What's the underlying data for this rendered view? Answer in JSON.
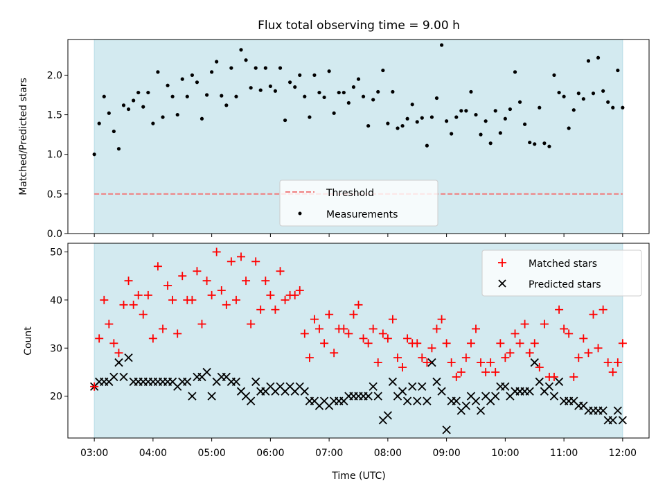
{
  "title": "Flux total observing time = 9.00 h",
  "colors": {
    "shade": "#d3eaf0",
    "shade_edge": "#b9dde6",
    "threshold": "#f08080",
    "matched": "#ff0000",
    "predicted": "#000000",
    "measurement": "#000000"
  },
  "chart_data": [
    {
      "type": "scatter",
      "ylabel": "Matched/Predicted stars",
      "xlabel": "",
      "xlim": [
        2.55,
        12.45
      ],
      "ylim": [
        0.0,
        2.45
      ],
      "yticks": [
        0.0,
        0.5,
        1.0,
        1.5,
        2.0
      ],
      "ytick_labels": [
        "0.0",
        "0.5",
        "1.0",
        "1.5",
        "2.0"
      ],
      "shaded_span": [
        3.0,
        12.0
      ],
      "grid": false,
      "legend_position": "lower-center",
      "threshold": {
        "name": "Threshold",
        "y": 0.5,
        "style": "dashed"
      },
      "series": [
        {
          "name": "Measurements",
          "marker": "dot",
          "x": [
            3.0,
            3.083,
            3.167,
            3.25,
            3.333,
            3.417,
            3.5,
            3.583,
            3.667,
            3.75,
            3.833,
            3.917,
            4.0,
            4.083,
            4.167,
            4.25,
            4.333,
            4.417,
            4.5,
            4.583,
            4.667,
            4.75,
            4.833,
            4.917,
            5.0,
            5.083,
            5.167,
            5.25,
            5.333,
            5.417,
            5.5,
            5.583,
            5.667,
            5.75,
            5.833,
            5.917,
            6.0,
            6.083,
            6.167,
            6.25,
            6.333,
            6.417,
            6.5,
            6.583,
            6.667,
            6.75,
            6.833,
            6.917,
            7.0,
            7.083,
            7.167,
            7.25,
            7.333,
            7.417,
            7.5,
            7.583,
            7.667,
            7.75,
            7.833,
            7.917,
            8.0,
            8.083,
            8.167,
            8.25,
            8.333,
            8.417,
            8.5,
            8.583,
            8.667,
            8.75,
            8.833,
            8.917,
            9.0,
            9.083,
            9.167,
            9.25,
            9.333,
            9.417,
            9.5,
            9.583,
            9.667,
            9.75,
            9.833,
            9.917,
            10.0,
            10.083,
            10.167,
            10.25,
            10.333,
            10.417,
            10.5,
            10.583,
            10.667,
            10.75,
            10.833,
            10.917,
            11.0,
            11.083,
            11.167,
            11.25,
            11.333,
            11.417,
            11.5,
            11.583,
            11.667,
            11.75,
            11.833,
            11.917,
            12.0
          ],
          "y": [
            1.0,
            1.39,
            1.73,
            1.52,
            1.29,
            1.07,
            1.62,
            1.57,
            1.68,
            1.78,
            1.6,
            1.78,
            1.39,
            2.04,
            1.47,
            1.87,
            1.73,
            1.5,
            1.95,
            1.73,
            2.0,
            1.91,
            1.45,
            1.75,
            2.04,
            2.17,
            1.74,
            1.62,
            2.09,
            1.73,
            2.32,
            2.19,
            1.84,
            2.09,
            1.81,
            2.09,
            1.86,
            1.8,
            2.09,
            1.43,
            1.91,
            1.85,
            2.0,
            1.73,
            1.47,
            2.0,
            1.78,
            1.72,
            2.05,
            1.52,
            1.78,
            1.78,
            1.65,
            1.85,
            1.95,
            1.73,
            1.36,
            1.69,
            1.79,
            2.06,
            1.39,
            1.79,
            1.33,
            1.36,
            1.45,
            1.63,
            1.41,
            1.46,
            1.11,
            1.47,
            1.71,
            2.38,
            1.42,
            1.26,
            1.47,
            1.55,
            1.55,
            1.79,
            1.5,
            1.25,
            1.42,
            1.14,
            1.55,
            1.27,
            1.45,
            1.57,
            2.04,
            1.66,
            1.38,
            1.15,
            1.13,
            1.59,
            1.14,
            1.1,
            2.0,
            1.78,
            1.73,
            1.33,
            1.56,
            1.77,
            1.7,
            2.18,
            1.77,
            2.22,
            1.8,
            1.66,
            1.59,
            2.06,
            1.59
          ]
        }
      ]
    },
    {
      "type": "scatter",
      "ylabel": "Count",
      "xlabel": "Time (UTC)",
      "xlim": [
        2.55,
        12.45
      ],
      "ylim": [
        11.3,
        51.8
      ],
      "yticks": [
        20,
        30,
        40,
        50
      ],
      "ytick_labels": [
        "20",
        "30",
        "40",
        "50"
      ],
      "xticks": [
        3,
        4,
        5,
        6,
        7,
        8,
        9,
        10,
        11,
        12
      ],
      "xtick_labels": [
        "03:00",
        "04:00",
        "05:00",
        "06:00",
        "07:00",
        "08:00",
        "09:00",
        "10:00",
        "11:00",
        "12:00"
      ],
      "shaded_span": [
        3.0,
        12.0
      ],
      "grid": false,
      "legend_position": "upper-right",
      "series": [
        {
          "name": "Matched stars",
          "marker": "plus",
          "x": [
            3.0,
            3.083,
            3.167,
            3.25,
            3.333,
            3.417,
            3.5,
            3.583,
            3.667,
            3.75,
            3.833,
            3.917,
            4.0,
            4.083,
            4.167,
            4.25,
            4.333,
            4.417,
            4.5,
            4.583,
            4.667,
            4.75,
            4.833,
            4.917,
            5.0,
            5.083,
            5.167,
            5.25,
            5.333,
            5.417,
            5.5,
            5.583,
            5.667,
            5.75,
            5.833,
            5.917,
            6.0,
            6.083,
            6.167,
            6.25,
            6.333,
            6.417,
            6.5,
            6.583,
            6.667,
            6.75,
            6.833,
            6.917,
            7.0,
            7.083,
            7.167,
            7.25,
            7.333,
            7.417,
            7.5,
            7.583,
            7.667,
            7.75,
            7.833,
            7.917,
            8.0,
            8.083,
            8.167,
            8.25,
            8.333,
            8.417,
            8.5,
            8.583,
            8.667,
            8.75,
            8.833,
            8.917,
            9.0,
            9.083,
            9.167,
            9.25,
            9.333,
            9.417,
            9.5,
            9.583,
            9.667,
            9.75,
            9.833,
            9.917,
            10.0,
            10.083,
            10.167,
            10.25,
            10.333,
            10.417,
            10.5,
            10.583,
            10.667,
            10.75,
            10.833,
            10.917,
            11.0,
            11.083,
            11.167,
            11.25,
            11.333,
            11.417,
            11.5,
            11.583,
            11.667,
            11.75,
            11.833,
            11.917,
            12.0
          ],
          "y": [
            22,
            32,
            40,
            35,
            31,
            29,
            39,
            44,
            39,
            41,
            37,
            41,
            32,
            47,
            34,
            43,
            40,
            33,
            45,
            40,
            40,
            46,
            35,
            44,
            41,
            50,
            42,
            39,
            48,
            40,
            49,
            44,
            35,
            48,
            38,
            44,
            41,
            38,
            46,
            40,
            41,
            41,
            42,
            33,
            28,
            36,
            34,
            31,
            37,
            29,
            34,
            34,
            33,
            37,
            39,
            32,
            31,
            34,
            27,
            33,
            32,
            36,
            28,
            26,
            32,
            31,
            31,
            28,
            27,
            30,
            34,
            36,
            31,
            27,
            24,
            25,
            28,
            31,
            34,
            27,
            25,
            27,
            25,
            31,
            28,
            29,
            33,
            31,
            35,
            29,
            31,
            26,
            35,
            24,
            24,
            38,
            34,
            33,
            24,
            28,
            32,
            29,
            37,
            30,
            38,
            27,
            25,
            27,
            31
          ]
        },
        {
          "name": "Predicted stars",
          "marker": "x",
          "x": [
            3.0,
            3.083,
            3.167,
            3.25,
            3.333,
            3.417,
            3.5,
            3.583,
            3.667,
            3.75,
            3.833,
            3.917,
            4.0,
            4.083,
            4.167,
            4.25,
            4.333,
            4.417,
            4.5,
            4.583,
            4.667,
            4.75,
            4.833,
            4.917,
            5.0,
            5.083,
            5.167,
            5.25,
            5.333,
            5.417,
            5.5,
            5.583,
            5.667,
            5.75,
            5.833,
            5.917,
            6.0,
            6.083,
            6.167,
            6.25,
            6.333,
            6.417,
            6.5,
            6.583,
            6.667,
            6.75,
            6.833,
            6.917,
            7.0,
            7.083,
            7.167,
            7.25,
            7.333,
            7.417,
            7.5,
            7.583,
            7.667,
            7.75,
            7.833,
            7.917,
            8.0,
            8.083,
            8.167,
            8.25,
            8.333,
            8.417,
            8.5,
            8.583,
            8.667,
            8.75,
            8.833,
            8.917,
            9.0,
            9.083,
            9.167,
            9.25,
            9.333,
            9.417,
            9.5,
            9.583,
            9.667,
            9.75,
            9.833,
            9.917,
            10.0,
            10.083,
            10.167,
            10.25,
            10.333,
            10.417,
            10.5,
            10.583,
            10.667,
            10.75,
            10.833,
            10.917,
            11.0,
            11.083,
            11.167,
            11.25,
            11.333,
            11.417,
            11.5,
            11.583,
            11.667,
            11.75,
            11.833,
            11.917,
            12.0
          ],
          "y": [
            22,
            23,
            23,
            23,
            24,
            27,
            24,
            28,
            23,
            23,
            23,
            23,
            23,
            23,
            23,
            23,
            23,
            22,
            23,
            23,
            20,
            24,
            24,
            25,
            20,
            23,
            24,
            24,
            23,
            23,
            21,
            20,
            19,
            23,
            21,
            21,
            22,
            21,
            22,
            21,
            22,
            21,
            22,
            21,
            19,
            19,
            18,
            19,
            18,
            19,
            19,
            19,
            20,
            20,
            20,
            20,
            20,
            22,
            20,
            15,
            16,
            23,
            20,
            21,
            19,
            22,
            19,
            22,
            19,
            27,
            23,
            21,
            13,
            19,
            19,
            17,
            18,
            20,
            19,
            17,
            20,
            19,
            20,
            22,
            22,
            20,
            21,
            21,
            21,
            21,
            27,
            23,
            21,
            22,
            20,
            23,
            19,
            19,
            19,
            18,
            18,
            17,
            17,
            17,
            17,
            15,
            15,
            17,
            15
          ]
        }
      ]
    }
  ]
}
